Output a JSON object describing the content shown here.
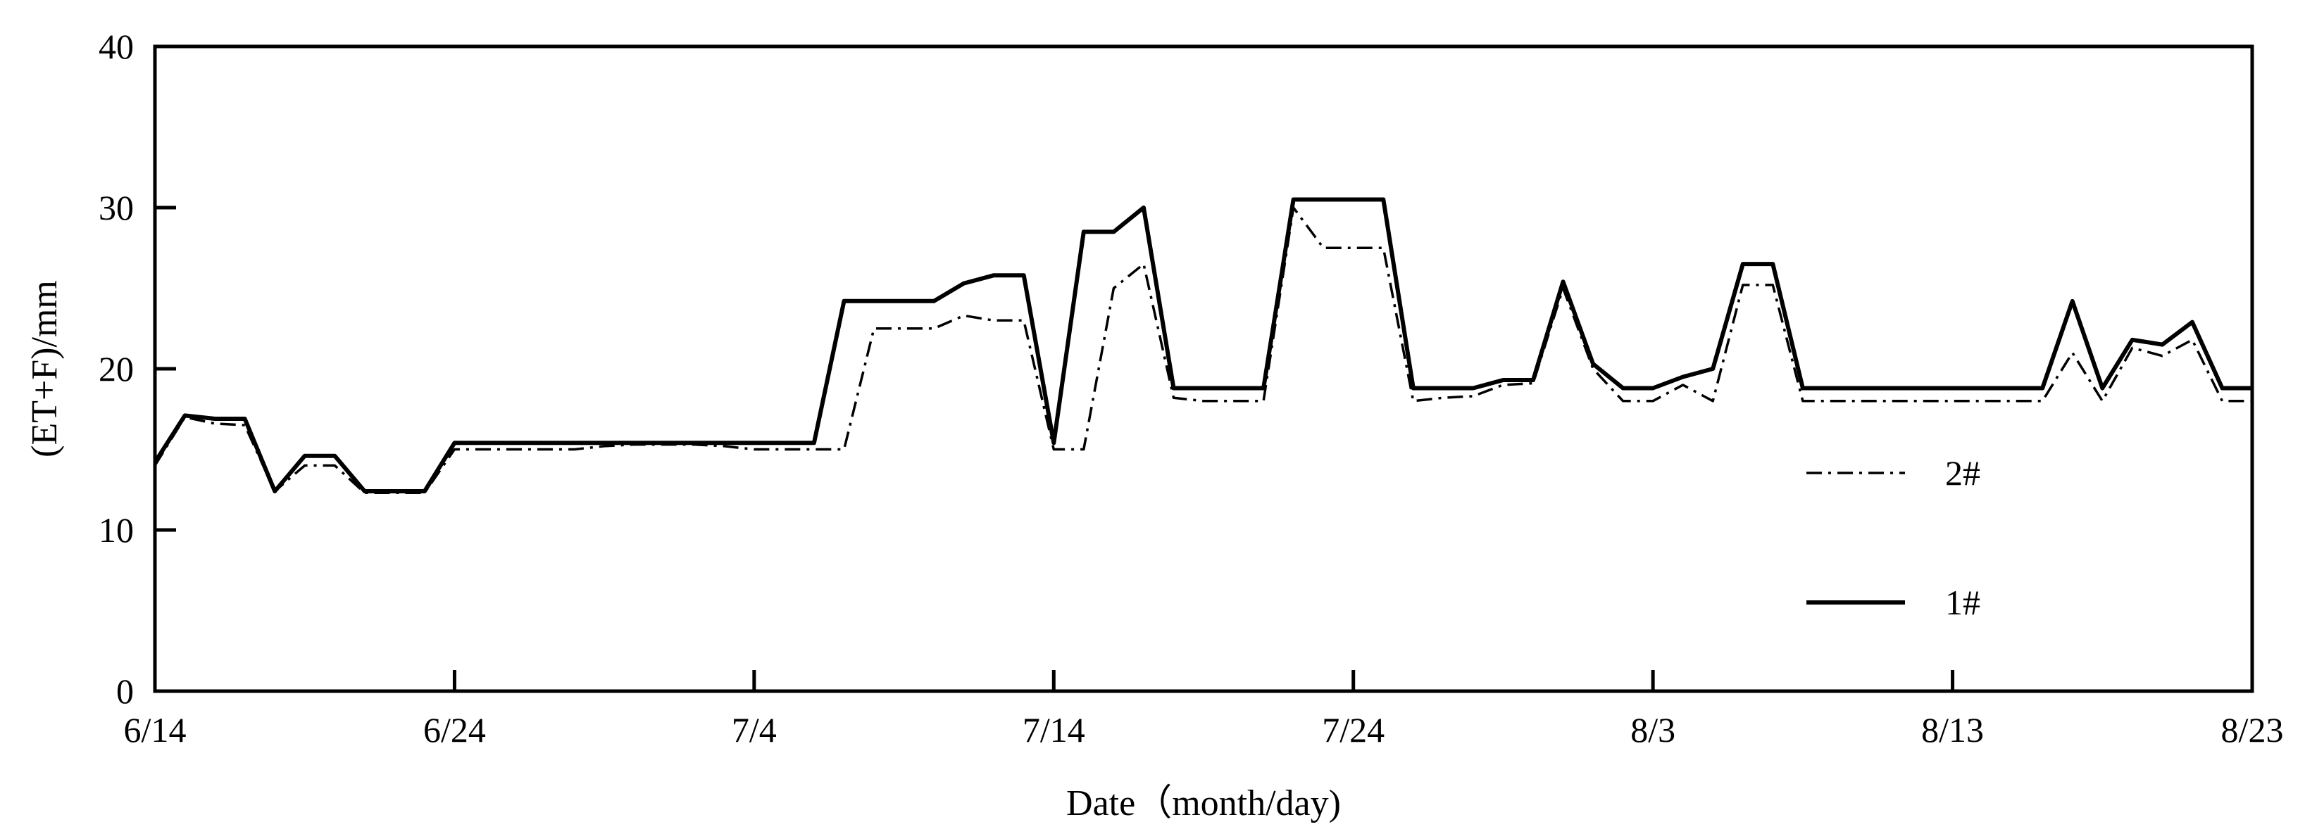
{
  "chart_data": {
    "type": "line",
    "title": "",
    "xlabel": "Date（month/day)",
    "ylabel": "(ET+F)/mm",
    "x_ticks": [
      "6/14",
      "6/24",
      "7/4",
      "7/14",
      "7/24",
      "8/3",
      "8/13",
      "8/23"
    ],
    "xlim": [
      "6/14",
      "8/23"
    ],
    "ylim": [
      0,
      40
    ],
    "y_ticks": [
      0,
      10,
      20,
      30,
      40
    ],
    "grid": false,
    "legend_position": "right",
    "x": [
      "6/14",
      "6/15",
      "6/16",
      "6/17",
      "6/18",
      "6/19",
      "6/20",
      "6/21",
      "6/22",
      "6/23",
      "6/24",
      "6/25",
      "6/26",
      "6/27",
      "6/28",
      "6/29",
      "6/30",
      "7/1",
      "7/2",
      "7/3",
      "7/4",
      "7/5",
      "7/6",
      "7/7",
      "7/8",
      "7/9",
      "7/10",
      "7/11",
      "7/12",
      "7/13",
      "7/14",
      "7/15",
      "7/16",
      "7/17",
      "7/18",
      "7/19",
      "7/20",
      "7/21",
      "7/22",
      "7/23",
      "7/24",
      "7/25",
      "7/26",
      "7/27",
      "7/28",
      "7/29",
      "7/30",
      "7/31",
      "8/1",
      "8/2",
      "8/3",
      "8/4",
      "8/5",
      "8/6",
      "8/7",
      "8/8",
      "8/9",
      "8/10",
      "8/11",
      "8/12",
      "8/13",
      "8/14",
      "8/15",
      "8/16",
      "8/17",
      "8/18",
      "8/19",
      "8/20",
      "8/21",
      "8/22",
      "8/23"
    ],
    "series": [
      {
        "name": "1#",
        "style": "solid",
        "values": [
          14.2,
          17.1,
          16.9,
          16.9,
          12.4,
          14.6,
          14.6,
          12.4,
          12.4,
          12.4,
          15.4,
          15.4,
          15.4,
          15.4,
          15.4,
          15.4,
          15.4,
          15.4,
          15.4,
          15.4,
          15.4,
          15.4,
          15.4,
          24.2,
          24.2,
          24.2,
          24.2,
          25.3,
          25.8,
          25.8,
          15.4,
          28.5,
          28.5,
          30.0,
          18.8,
          18.8,
          18.8,
          18.8,
          30.5,
          30.5,
          30.5,
          30.5,
          18.8,
          18.8,
          18.8,
          19.3,
          19.3,
          25.4,
          20.3,
          18.8,
          18.8,
          19.5,
          20.0,
          26.5,
          26.5,
          18.8,
          18.8,
          18.8,
          18.8,
          18.8,
          18.8,
          18.8,
          18.8,
          18.8,
          24.2,
          18.8,
          21.8,
          21.5,
          22.9,
          18.8,
          18.8
        ]
      },
      {
        "name": "2#",
        "style": "dash-dot",
        "values": [
          14.0,
          17.0,
          16.6,
          16.5,
          12.4,
          14.0,
          14.0,
          12.3,
          12.3,
          12.3,
          15.0,
          15.0,
          15.0,
          15.0,
          15.0,
          15.2,
          15.3,
          15.3,
          15.3,
          15.2,
          15.0,
          15.0,
          15.0,
          15.0,
          22.5,
          22.5,
          22.5,
          23.3,
          23.0,
          23.0,
          15.0,
          15.0,
          25.0,
          26.5,
          18.2,
          18.0,
          18.0,
          18.0,
          30.0,
          27.5,
          27.5,
          27.5,
          18.0,
          18.2,
          18.3,
          19.0,
          19.1,
          25.0,
          20.0,
          18.0,
          18.0,
          19.0,
          18.0,
          25.2,
          25.2,
          18.0,
          18.0,
          18.0,
          18.0,
          18.0,
          18.0,
          18.0,
          18.0,
          18.0,
          21.0,
          18.0,
          21.3,
          20.8,
          21.8,
          18.0,
          18.0
        ]
      }
    ]
  }
}
